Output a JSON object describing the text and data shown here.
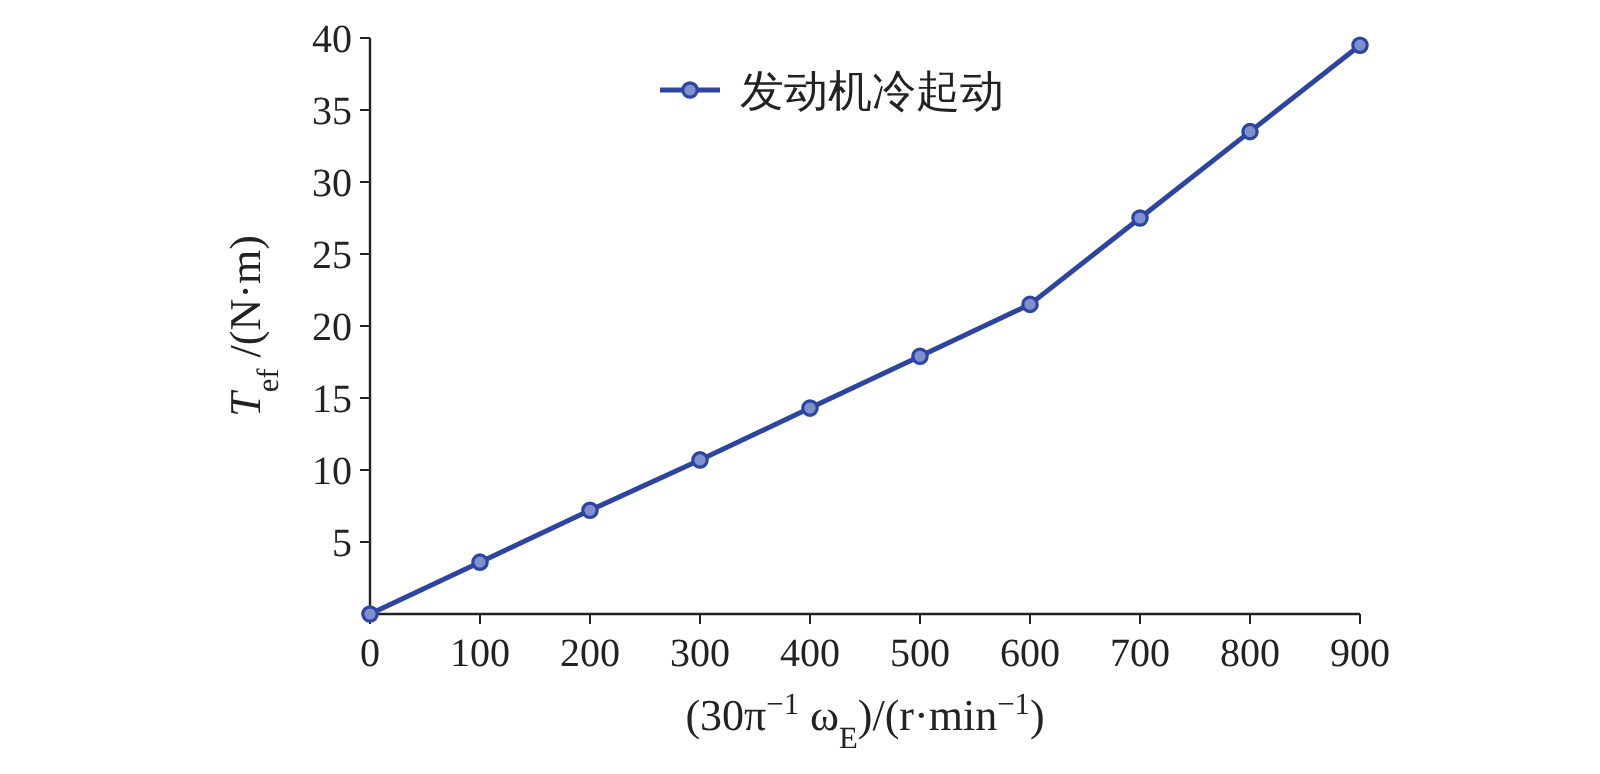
{
  "chart_data": {
    "type": "line",
    "xlabel": "(30π$^{−1}$ ω$_{E}$)/(r·min$^{−1}$)",
    "ylabel": "T$_{ef}$ /(N·m)",
    "x": [
      0,
      100,
      200,
      300,
      400,
      500,
      600,
      700,
      800,
      900
    ],
    "series": [
      {
        "name": "发动机冷起动",
        "color": "#2e45a0",
        "values": [
          0,
          3.6,
          7.2,
          10.7,
          14.3,
          17.9,
          21.5,
          27.5,
          33.5,
          39.5
        ]
      }
    ],
    "xlim": [
      0,
      900
    ],
    "xticks": [
      0,
      100,
      200,
      300,
      400,
      500,
      600,
      700,
      800,
      900
    ],
    "ylim": [
      0,
      40
    ],
    "yticks": [
      5,
      10,
      15,
      20,
      25,
      30,
      35,
      40
    ],
    "marker": "circle",
    "line_style": "solid",
    "legend": "top",
    "grid": false
  }
}
